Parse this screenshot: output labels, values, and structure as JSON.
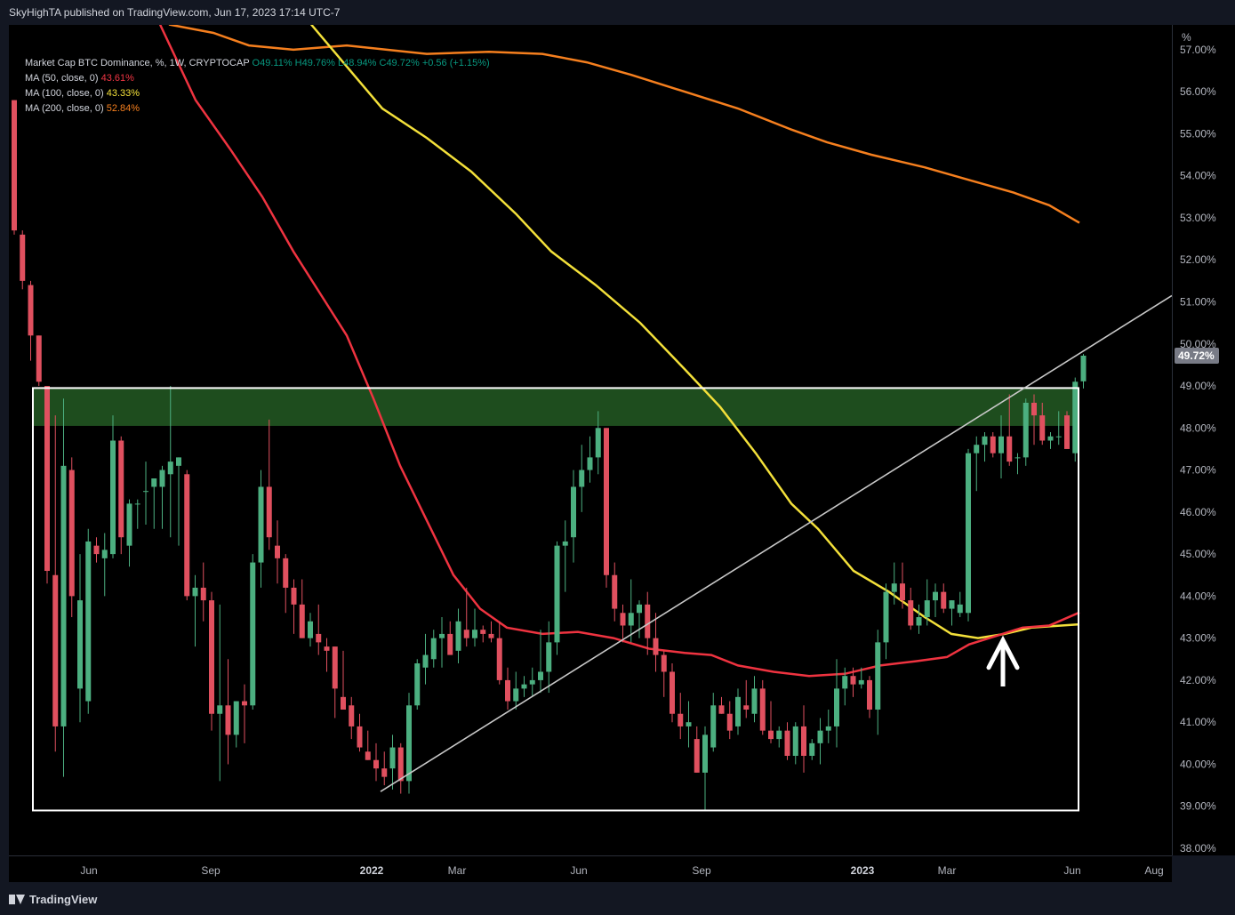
{
  "header": {
    "published": "SkyHighTA published on TradingView.com, Jun 17, 2023 17:14 UTC-7"
  },
  "legend": {
    "symbol": "Market Cap BTC Dominance, %, 1W, CRYPTOCAP",
    "o": "O49.11%",
    "h": "H49.76%",
    "l": "L48.94%",
    "c": "C49.72%",
    "chg": "+0.56 (+1.15%)",
    "ma50_label": "MA (50, close, 0)",
    "ma50_value": "43.61%",
    "ma100_label": "MA (100, close, 0)",
    "ma100_value": "43.33%",
    "ma200_label": "MA (200, close, 0)",
    "ma200_value": "52.84%"
  },
  "footer": {
    "brand": "TradingView"
  },
  "colors": {
    "up": "#4caf80",
    "down": "#e0505f",
    "ma50": "#ef3340",
    "ma100": "#f3e03a",
    "ma200": "#f57f1e",
    "zone": "#1e4d1e",
    "trendline": "#c8c8c8",
    "price_badge": "#787b86"
  },
  "chart_data": {
    "type": "candlestick",
    "title": "Market Cap BTC Dominance, %, 1W, CRYPTOCAP",
    "yunit": "%",
    "ylim": [
      37.8,
      57.35
    ],
    "yticks": [
      "38.00%",
      "39.00%",
      "40.00%",
      "41.00%",
      "42.00%",
      "43.00%",
      "44.00%",
      "45.00%",
      "46.00%",
      "47.00%",
      "48.00%",
      "49.00%",
      "50.00%",
      "51.00%",
      "52.00%",
      "53.00%",
      "54.00%",
      "55.00%",
      "56.00%",
      "57.00%"
    ],
    "xticks": [
      {
        "label": "Jun",
        "bold": false
      },
      {
        "label": "Sep",
        "bold": false
      },
      {
        "label": "2022",
        "bold": true
      },
      {
        "label": "Mar",
        "bold": false
      },
      {
        "label": "Jun",
        "bold": false
      },
      {
        "label": "Sep",
        "bold": false
      },
      {
        "label": "2023",
        "bold": true
      },
      {
        "label": "Mar",
        "bold": false
      },
      {
        "label": "Jun",
        "bold": false
      },
      {
        "label": "Aug",
        "bold": false
      }
    ],
    "last_price_label": "49.72%",
    "candles": [
      [
        55.8,
        55.8,
        52.6,
        52.7
      ],
      [
        52.6,
        52.7,
        51.3,
        51.5
      ],
      [
        51.4,
        51.5,
        49.6,
        50.2
      ],
      [
        50.2,
        50.2,
        49.0,
        49.1
      ],
      [
        49.0,
        49.0,
        44.3,
        44.6
      ],
      [
        44.5,
        48.3,
        40.3,
        40.9
      ],
      [
        40.9,
        48.7,
        39.7,
        47.1
      ],
      [
        47.0,
        47.3,
        43.5,
        44.0
      ],
      [
        41.8,
        45.0,
        41.0,
        43.9
      ],
      [
        41.5,
        45.6,
        41.2,
        45.3
      ],
      [
        45.2,
        45.4,
        44.8,
        45.0
      ],
      [
        44.9,
        45.5,
        44.0,
        45.1
      ],
      [
        45.0,
        48.3,
        44.9,
        47.7
      ],
      [
        47.7,
        47.8,
        45.0,
        45.4
      ],
      [
        45.2,
        46.3,
        44.7,
        46.2
      ],
      [
        46.2,
        46.3,
        45.6,
        46.2
      ],
      [
        46.5,
        47.2,
        45.7,
        46.5
      ],
      [
        46.6,
        46.8,
        45.6,
        46.8
      ],
      [
        46.6,
        47.1,
        45.6,
        47.0
      ],
      [
        46.9,
        49.0,
        45.4,
        47.2
      ],
      [
        47.1,
        47.3,
        45.2,
        47.3
      ],
      [
        46.9,
        47.0,
        43.9,
        44.0
      ],
      [
        44.0,
        44.5,
        42.8,
        44.2
      ],
      [
        44.2,
        44.8,
        43.4,
        43.9
      ],
      [
        43.9,
        44.1,
        40.8,
        41.2
      ],
      [
        41.2,
        43.8,
        39.6,
        41.4
      ],
      [
        41.4,
        42.5,
        40.0,
        40.7
      ],
      [
        40.7,
        41.5,
        40.4,
        41.5
      ],
      [
        41.5,
        41.9,
        40.5,
        41.4
      ],
      [
        41.4,
        45.0,
        41.3,
        44.8
      ],
      [
        44.8,
        47.0,
        44.2,
        46.6
      ],
      [
        46.6,
        48.2,
        45.1,
        45.4
      ],
      [
        45.2,
        45.8,
        44.3,
        44.9
      ],
      [
        44.9,
        45.0,
        43.6,
        44.2
      ],
      [
        44.2,
        44.4,
        43.1,
        43.8
      ],
      [
        43.8,
        44.4,
        43.0,
        43.0
      ],
      [
        43.0,
        43.6,
        42.8,
        43.4
      ],
      [
        43.1,
        43.8,
        42.6,
        42.9
      ],
      [
        42.8,
        43.0,
        42.2,
        42.7
      ],
      [
        42.8,
        42.8,
        41.1,
        41.8
      ],
      [
        41.6,
        42.7,
        41.3,
        41.3
      ],
      [
        41.4,
        41.6,
        40.6,
        40.9
      ],
      [
        40.9,
        41.2,
        40.3,
        40.4
      ],
      [
        40.3,
        40.8,
        40.1,
        40.1
      ],
      [
        40.1,
        40.5,
        39.6,
        39.9
      ],
      [
        39.9,
        40.3,
        39.5,
        39.7
      ],
      [
        39.9,
        40.7,
        39.4,
        40.4
      ],
      [
        40.4,
        40.5,
        39.3,
        39.6
      ],
      [
        39.6,
        41.7,
        39.3,
        41.4
      ],
      [
        41.4,
        42.5,
        41.3,
        42.4
      ],
      [
        42.3,
        43.1,
        41.9,
        42.6
      ],
      [
        42.5,
        43.2,
        42.3,
        43.0
      ],
      [
        43.0,
        43.5,
        42.3,
        43.1
      ],
      [
        43.1,
        43.4,
        42.7,
        42.6
      ],
      [
        42.7,
        43.7,
        42.4,
        43.4
      ],
      [
        43.2,
        44.2,
        42.8,
        43.0
      ],
      [
        43.0,
        43.7,
        42.8,
        43.2
      ],
      [
        43.2,
        43.3,
        42.9,
        43.1
      ],
      [
        43.1,
        43.4,
        42.9,
        43.0
      ],
      [
        43.0,
        43.4,
        41.9,
        42.0
      ],
      [
        42.0,
        42.3,
        41.3,
        41.5
      ],
      [
        41.5,
        42.2,
        41.3,
        41.8
      ],
      [
        41.8,
        42.1,
        41.6,
        41.9
      ],
      [
        41.9,
        42.3,
        41.6,
        42.0
      ],
      [
        42.0,
        43.2,
        41.7,
        42.2
      ],
      [
        42.2,
        43.4,
        41.7,
        42.9
      ],
      [
        42.9,
        45.3,
        42.6,
        45.2
      ],
      [
        45.2,
        45.8,
        44.1,
        45.3
      ],
      [
        45.4,
        47.0,
        44.8,
        46.6
      ],
      [
        46.6,
        47.6,
        46.0,
        47.0
      ],
      [
        47.0,
        47.8,
        46.7,
        47.3
      ],
      [
        47.3,
        48.4,
        46.9,
        48.0
      ],
      [
        48.0,
        48.0,
        44.2,
        44.5
      ],
      [
        44.5,
        44.8,
        43.4,
        43.7
      ],
      [
        43.6,
        43.8,
        42.9,
        43.3
      ],
      [
        43.3,
        44.4,
        42.9,
        43.6
      ],
      [
        43.6,
        43.9,
        43.0,
        43.8
      ],
      [
        43.8,
        44.1,
        42.6,
        43.0
      ],
      [
        43.0,
        43.6,
        42.2,
        42.6
      ],
      [
        42.6,
        42.7,
        41.6,
        42.2
      ],
      [
        42.2,
        42.4,
        41.0,
        41.2
      ],
      [
        41.2,
        41.7,
        40.6,
        40.9
      ],
      [
        40.9,
        41.5,
        40.4,
        41.0
      ],
      [
        40.6,
        40.9,
        39.8,
        39.8
      ],
      [
        39.8,
        40.9,
        38.9,
        40.7
      ],
      [
        40.4,
        41.7,
        40.3,
        41.4
      ],
      [
        41.4,
        41.6,
        41.2,
        41.2
      ],
      [
        41.2,
        41.5,
        40.6,
        40.8
      ],
      [
        40.9,
        41.8,
        40.7,
        41.6
      ],
      [
        41.4,
        42.0,
        41.1,
        41.3
      ],
      [
        41.2,
        42.1,
        41.0,
        41.8
      ],
      [
        41.8,
        42.0,
        40.7,
        40.8
      ],
      [
        40.8,
        41.5,
        40.5,
        40.6
      ],
      [
        40.6,
        40.9,
        40.4,
        40.8
      ],
      [
        40.8,
        41.0,
        40.1,
        40.2
      ],
      [
        40.2,
        41.0,
        40.0,
        40.9
      ],
      [
        40.9,
        41.4,
        39.8,
        40.2
      ],
      [
        40.2,
        40.6,
        40.1,
        40.5
      ],
      [
        40.5,
        41.1,
        40.0,
        40.8
      ],
      [
        40.8,
        41.3,
        40.5,
        40.9
      ],
      [
        40.9,
        42.5,
        40.4,
        41.8
      ],
      [
        41.8,
        42.3,
        41.4,
        42.1
      ],
      [
        42.1,
        42.3,
        41.6,
        41.9
      ],
      [
        41.9,
        42.3,
        41.8,
        42.0
      ],
      [
        42.0,
        42.1,
        41.1,
        41.3
      ],
      [
        41.3,
        43.2,
        40.7,
        42.9
      ],
      [
        42.9,
        44.3,
        42.5,
        44.1
      ],
      [
        44.1,
        44.8,
        43.8,
        44.3
      ],
      [
        44.3,
        44.8,
        43.7,
        43.9
      ],
      [
        43.9,
        44.2,
        43.2,
        43.3
      ],
      [
        43.3,
        43.8,
        43.1,
        43.5
      ],
      [
        43.5,
        44.4,
        43.3,
        43.9
      ],
      [
        43.9,
        44.3,
        43.5,
        44.1
      ],
      [
        44.1,
        44.3,
        43.6,
        43.7
      ],
      [
        43.7,
        43.9,
        43.3,
        43.9
      ],
      [
        43.6,
        44.1,
        43.5,
        43.8
      ],
      [
        43.6,
        47.5,
        43.4,
        47.4
      ],
      [
        47.4,
        47.8,
        46.5,
        47.6
      ],
      [
        47.6,
        47.9,
        47.2,
        47.8
      ],
      [
        47.8,
        47.9,
        47.3,
        47.4
      ],
      [
        47.4,
        48.3,
        46.8,
        47.8
      ],
      [
        47.8,
        48.8,
        47.1,
        47.2
      ],
      [
        47.3,
        47.4,
        46.9,
        47.3
      ],
      [
        47.3,
        48.7,
        47.1,
        48.6
      ],
      [
        48.6,
        48.8,
        47.6,
        48.3
      ],
      [
        48.3,
        48.6,
        47.6,
        47.7
      ],
      [
        47.7,
        47.9,
        47.5,
        47.8
      ],
      [
        47.8,
        48.4,
        47.6,
        47.8
      ],
      [
        48.3,
        48.4,
        47.5,
        47.5
      ],
      [
        47.4,
        49.2,
        47.2,
        49.1
      ],
      [
        49.11,
        49.76,
        48.94,
        49.72
      ]
    ]
  }
}
